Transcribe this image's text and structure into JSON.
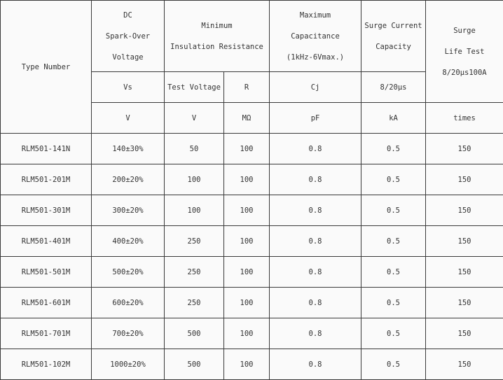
{
  "header": {
    "type_number": "Type Number",
    "spark_over": [
      "DC",
      "Spark-Over",
      "Voltage"
    ],
    "insulation": [
      "Minimum",
      "Insulation Resistance"
    ],
    "capacitance": [
      "Maximum",
      "Capacitance",
      "(1kHz-6Vmax.)"
    ],
    "surge_current": [
      "Surge Current",
      "Capacity"
    ],
    "surge_life": [
      "Surge",
      "Life Test",
      "8/20μs100A"
    ],
    "sym_vs": "Vs",
    "sym_test_voltage": "Test Voltage",
    "sym_r": "R",
    "sym_cj": "Cj",
    "sym_surge": "8/20μs",
    "unit_vs": "V",
    "unit_tv": "V",
    "unit_r": "MΩ",
    "unit_cj": "pF",
    "unit_surge": "kA",
    "unit_life": "times"
  },
  "rows": [
    [
      "RLM501-141N",
      "140±30%",
      "50",
      "100",
      "0.8",
      "0.5",
      "150"
    ],
    [
      "RLM501-201M",
      "200±20%",
      "100",
      "100",
      "0.8",
      "0.5",
      "150"
    ],
    [
      "RLM501-301M",
      "300±20%",
      "100",
      "100",
      "0.8",
      "0.5",
      "150"
    ],
    [
      "RLM501-401M",
      "400±20%",
      "250",
      "100",
      "0.8",
      "0.5",
      "150"
    ],
    [
      "RLM501-501M",
      "500±20%",
      "250",
      "100",
      "0.8",
      "0.5",
      "150"
    ],
    [
      "RLM501-601M",
      "600±20%",
      "250",
      "100",
      "0.8",
      "0.5",
      "150"
    ],
    [
      "RLM501-701M",
      "700±20%",
      "500",
      "100",
      "0.8",
      "0.5",
      "150"
    ],
    [
      "RLM501-102M",
      "1000±20%",
      "500",
      "100",
      "0.8",
      "0.5",
      "150"
    ]
  ]
}
